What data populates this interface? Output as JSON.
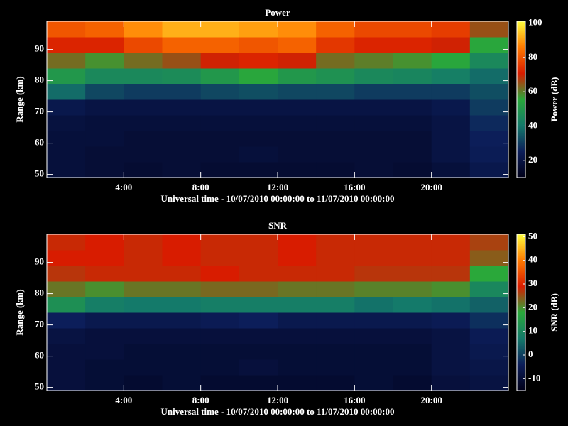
{
  "chart_data": [
    {
      "type": "heatmap",
      "title": "Power",
      "x_label": "Universal time - 10/07/2010 00:00:00 to 11/07/2010 00:00:00",
      "y_label": "Range (km)",
      "colorbar_label": "Power (dB)",
      "x": [
        1,
        3,
        5,
        7,
        9,
        11,
        13,
        15,
        17,
        19,
        21,
        23
      ],
      "y": [
        51.5,
        56.5,
        61.5,
        66.5,
        71.5,
        76.5,
        81.5,
        86.5,
        91.5,
        96.5
      ],
      "values": [
        [
          18,
          17,
          16,
          17,
          16,
          16,
          16,
          16,
          17,
          16,
          18,
          22
        ],
        [
          18,
          17,
          17,
          17,
          17,
          18,
          17,
          17,
          17,
          17,
          20,
          24
        ],
        [
          18,
          18,
          17,
          17,
          17,
          17,
          17,
          17,
          17,
          17,
          20,
          25
        ],
        [
          19,
          18,
          18,
          18,
          18,
          18,
          18,
          18,
          18,
          18,
          20,
          27
        ],
        [
          22,
          20,
          20,
          20,
          20,
          20,
          20,
          20,
          20,
          20,
          22,
          30
        ],
        [
          38,
          32,
          30,
          30,
          32,
          33,
          32,
          32,
          30,
          30,
          30,
          33
        ],
        [
          50,
          45,
          45,
          46,
          50,
          55,
          50,
          48,
          45,
          44,
          42,
          38
        ],
        [
          62,
          58,
          62,
          65,
          70,
          72,
          70,
          62,
          60,
          58,
          55,
          45
        ],
        [
          72,
          72,
          78,
          82,
          82,
          80,
          82,
          75,
          72,
          72,
          70,
          55
        ],
        [
          80,
          82,
          88,
          92,
          92,
          90,
          88,
          82,
          78,
          78,
          76,
          65
        ]
      ],
      "xlim": [
        0,
        24
      ],
      "ylim": [
        49,
        99
      ],
      "xticks": [
        {
          "value": 4,
          "label": "4:00"
        },
        {
          "value": 8,
          "label": "8:00"
        },
        {
          "value": 12,
          "label": "12:00"
        },
        {
          "value": 16,
          "label": "16:00"
        },
        {
          "value": 20,
          "label": "20:00"
        }
      ],
      "yticks": [
        50,
        60,
        70,
        80,
        90
      ],
      "clim": [
        10,
        101
      ],
      "cticks": [
        20,
        40,
        60,
        80,
        100
      ],
      "colors": [
        "#000018",
        "#0c1e5a",
        "#147a6a",
        "#2aa83a",
        "#d81c00",
        "#ff7a00",
        "#ffff3c"
      ]
    },
    {
      "type": "heatmap",
      "title": "SNR",
      "x_label": "Universal time - 10/07/2010 00:00:00 to 11/07/2010 00:00:00",
      "y_label": "Range (km)",
      "colorbar_label": "SNR (dB)",
      "x": [
        1,
        3,
        5,
        7,
        9,
        11,
        13,
        15,
        17,
        19,
        21,
        23
      ],
      "y": [
        51.5,
        56.5,
        61.5,
        66.5,
        71.5,
        76.5,
        81.5,
        86.5,
        91.5,
        96.5
      ],
      "values": [
        [
          -9,
          -10,
          -11,
          -10,
          -11,
          -11,
          -11,
          -11,
          -10,
          -11,
          -9,
          -8
        ],
        [
          -9,
          -10,
          -10,
          -10,
          -10,
          -9,
          -10,
          -10,
          -10,
          -10,
          -8,
          -7
        ],
        [
          -9,
          -9,
          -10,
          -10,
          -10,
          -10,
          -10,
          -10,
          -10,
          -10,
          -8,
          -6
        ],
        [
          -8,
          -9,
          -9,
          -9,
          -9,
          -9,
          -9,
          -9,
          -9,
          -9,
          -8,
          -5
        ],
        [
          -4,
          -6,
          -6,
          -6,
          -5,
          -4,
          -6,
          -6,
          -6,
          -6,
          -5,
          -2
        ],
        [
          12,
          8,
          7,
          7,
          8,
          8,
          8,
          8,
          6,
          7,
          6,
          4
        ],
        [
          22,
          20,
          22,
          22,
          23,
          23,
          22,
          22,
          21,
          21,
          20,
          10
        ],
        [
          27,
          28,
          28,
          28,
          29,
          28,
          28,
          28,
          27,
          27,
          27,
          18
        ],
        [
          29,
          29,
          28,
          29,
          28,
          28,
          29,
          28,
          28,
          28,
          28,
          24
        ],
        [
          28,
          29,
          28,
          29,
          28,
          28,
          29,
          28,
          28,
          28,
          28,
          26
        ]
      ],
      "xlim": [
        0,
        24
      ],
      "ylim": [
        49,
        99
      ],
      "xticks": [
        {
          "value": 4,
          "label": "4:00"
        },
        {
          "value": 8,
          "label": "8:00"
        },
        {
          "value": 12,
          "label": "12:00"
        },
        {
          "value": 16,
          "label": "16:00"
        },
        {
          "value": 20,
          "label": "20:00"
        }
      ],
      "yticks": [
        50,
        60,
        70,
        80,
        90
      ],
      "clim": [
        -15,
        51
      ],
      "cticks": [
        -10,
        0,
        10,
        20,
        30,
        40,
        50
      ],
      "colors": [
        "#000018",
        "#0c1e5a",
        "#147a6a",
        "#2aa83a",
        "#d81c00",
        "#ff7a00",
        "#ffff3c"
      ]
    }
  ]
}
